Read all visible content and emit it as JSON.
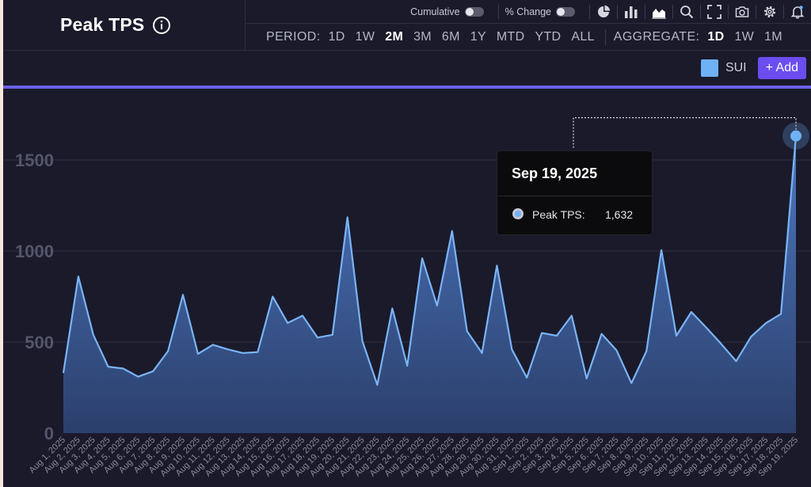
{
  "header": {
    "title": "Peak TPS",
    "toggles": [
      {
        "label": "Cumulative",
        "on": false
      },
      {
        "label": "% Change",
        "on": false
      }
    ],
    "icons": [
      "pie-chart-icon",
      "bar-chart-icon",
      "area-chart-icon",
      "zoom-icon",
      "fullscreen-icon",
      "camera-icon",
      "settings-icon",
      "bell-icon"
    ],
    "period_label": "PERIOD:",
    "periods": [
      "1D",
      "1W",
      "2M",
      "3M",
      "6M",
      "1Y",
      "MTD",
      "YTD",
      "ALL"
    ],
    "active_period": "2M",
    "aggregate_label": "AGGREGATE:",
    "aggregates": [
      "1D",
      "1W",
      "1M"
    ],
    "active_aggregate": "1D"
  },
  "legend": {
    "series_label": "SUI",
    "add_label": "+ Add",
    "series_color": "#6fb1f5",
    "accent_color": "#6b4df0"
  },
  "tooltip": {
    "date": "Sep 19, 2025",
    "series": "Peak TPS:",
    "value": "1,632"
  },
  "chart_data": {
    "type": "area",
    "title": "Peak TPS",
    "series": [
      {
        "name": "SUI",
        "color": "#6fb1f5",
        "values": [
          330,
          860,
          540,
          365,
          355,
          310,
          340,
          450,
          760,
          435,
          485,
          460,
          440,
          445,
          750,
          605,
          645,
          525,
          540,
          1185,
          505,
          265,
          685,
          370,
          960,
          700,
          1110,
          560,
          440,
          920,
          460,
          305,
          550,
          535,
          645,
          300,
          545,
          455,
          275,
          450,
          1005,
          535,
          665,
          580,
          490,
          395,
          530,
          605,
          655,
          1632
        ]
      }
    ],
    "x": [
      "Aug 1, 2025",
      "Aug 2, 2025",
      "Aug 3, 2025",
      "Aug 4, 2025",
      "Aug 5, 2025",
      "Aug 6, 2025",
      "Aug 7, 2025",
      "Aug 8, 2025",
      "Aug 9, 2025",
      "Aug 10, 2025",
      "Aug 11, 2025",
      "Aug 12, 2025",
      "Aug 13, 2025",
      "Aug 14, 2025",
      "Aug 15, 2025",
      "Aug 16, 2025",
      "Aug 17, 2025",
      "Aug 18, 2025",
      "Aug 19, 2025",
      "Aug 20, 2025",
      "Aug 21, 2025",
      "Aug 22, 2025",
      "Aug 23, 2025",
      "Aug 24, 2025",
      "Aug 25, 2025",
      "Aug 26, 2025",
      "Aug 27, 2025",
      "Aug 28, 2025",
      "Aug 29, 2025",
      "Aug 30, 2025",
      "Aug 31, 2025",
      "Sep 1, 2025",
      "Sep 2, 2025",
      "Sep 3, 2025",
      "Sep 4, 2025",
      "Sep 5, 2025",
      "Sep 6, 2025",
      "Sep 7, 2025",
      "Sep 8, 2025",
      "Sep 9, 2025",
      "Sep 10, 2025",
      "Sep 11, 2025",
      "Sep 12, 2025",
      "Sep 13, 2025",
      "Sep 14, 2025",
      "Sep 15, 2025",
      "Sep 16, 2025",
      "Sep 17, 2025",
      "Sep 18, 2025",
      "Sep 19, 2025"
    ],
    "yticks": [
      0,
      500,
      1000,
      1500
    ],
    "ylim": [
      0,
      1750
    ],
    "xlabel": "",
    "ylabel": "",
    "grid": true,
    "highlight_index": 49
  }
}
